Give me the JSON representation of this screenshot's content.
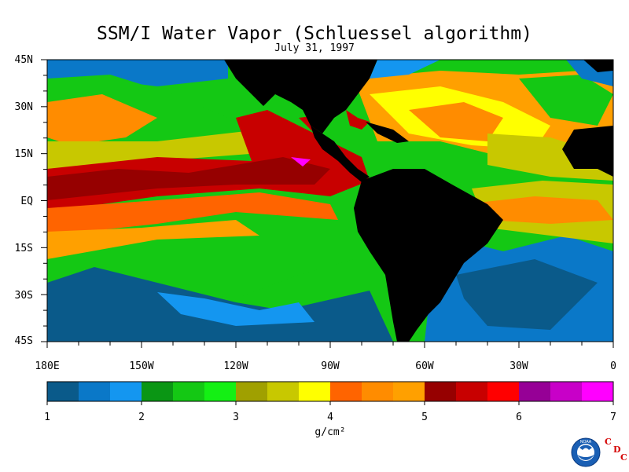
{
  "title": "SSM/I Water Vapor (Schluessel algorithm)",
  "date": "July 31, 1997",
  "lat_labels": [
    "45N",
    "30N",
    "15N",
    "EQ",
    "15S",
    "30S",
    "45S"
  ],
  "lon_labels": [
    "180E",
    "150W",
    "120W",
    "90W",
    "60W",
    "30W",
    "0"
  ],
  "colorbar": {
    "colors": [
      "#0a5a8a",
      "#0a78c8",
      "#1496f0",
      "#0a9614",
      "#14c814",
      "#14f014",
      "#a0a000",
      "#c8c800",
      "#ffff00",
      "#ff6400",
      "#ff8c00",
      "#ffa000",
      "#960000",
      "#c80000",
      "#ff0000",
      "#960096",
      "#c800c8",
      "#ff00ff"
    ],
    "tick_labels": [
      "1",
      "2",
      "3",
      "4",
      "5",
      "6",
      "7"
    ],
    "unit": "g/cm²"
  },
  "logo": {
    "agency": "NOAA",
    "letters": [
      "C",
      "D",
      "C"
    ]
  },
  "colors": {
    "land": "#000000",
    "ocean_low": "#0a5a8a",
    "accent_red": "#d40000"
  }
}
